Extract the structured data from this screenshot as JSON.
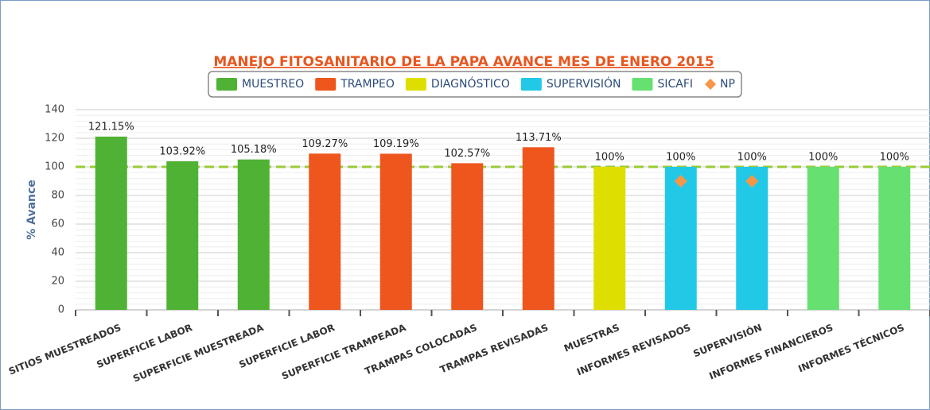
{
  "chart_data": {
    "type": "bar",
    "title": "MANEJO FITOSANITARIO DE LA PAPA AVANCE MES DE ENERO 2015",
    "ylabel": "% Avance",
    "categories": [
      "SITIOS MUESTREADOS",
      "SUPERFICIE LABOR",
      "SUPERFICIE MUESTREADA",
      "SUPERFICIE LABOR",
      "SUPERFICIE TRAMPEADA",
      "TRAMPAS COLOCADAS",
      "TRAMPAS REVISADAS",
      "MUESTRAS",
      "INFORMES REVISADOS",
      "SUPERVISIÓN",
      "INFORMES FINANCIEROS",
      "INFORMES TÉCNICOS"
    ],
    "series": [
      {
        "name": "MUESTREO",
        "color": "#4fb235",
        "values": [
          121.15,
          103.92,
          105.18,
          null,
          null,
          null,
          null,
          null,
          null,
          null,
          null,
          null
        ],
        "value_labels": [
          "121.15%",
          "103.92%",
          "105.18%",
          null,
          null,
          null,
          null,
          null,
          null,
          null,
          null,
          null
        ]
      },
      {
        "name": "TRAMPEO",
        "color": "#ee561e",
        "values": [
          null,
          null,
          null,
          109.27,
          109.19,
          102.57,
          113.71,
          null,
          null,
          null,
          null,
          null
        ],
        "value_labels": [
          null,
          null,
          null,
          "109.27%",
          "109.19%",
          "102.57%",
          "113.71%",
          null,
          null,
          null,
          null,
          null
        ]
      },
      {
        "name": "DIAGNÓSTICO",
        "color": "#dede00",
        "values": [
          null,
          null,
          null,
          null,
          null,
          null,
          null,
          100,
          null,
          null,
          null,
          null
        ],
        "value_labels": [
          null,
          null,
          null,
          null,
          null,
          null,
          null,
          "100%",
          null,
          null,
          null,
          null
        ]
      },
      {
        "name": "SUPERVISIÓN",
        "color": "#22c9e6",
        "values": [
          null,
          null,
          null,
          null,
          null,
          null,
          null,
          null,
          100,
          100,
          null,
          null
        ],
        "value_labels": [
          null,
          null,
          null,
          null,
          null,
          null,
          null,
          null,
          "100%",
          "100%",
          null,
          null
        ]
      },
      {
        "name": "SICAFI",
        "color": "#66e070",
        "values": [
          null,
          null,
          null,
          null,
          null,
          null,
          null,
          null,
          null,
          null,
          100,
          100
        ],
        "value_labels": [
          null,
          null,
          null,
          null,
          null,
          null,
          null,
          null,
          null,
          null,
          "100%",
          "100%"
        ]
      },
      {
        "name": "NP",
        "color": "#f79646",
        "type": "marker",
        "values": [
          null,
          null,
          null,
          null,
          null,
          null,
          null,
          null,
          90,
          90,
          null,
          null
        ]
      }
    ],
    "ylim": [
      0,
      140
    ],
    "yticks": [
      0,
      20,
      40,
      60,
      80,
      100,
      120,
      140
    ],
    "grid": true,
    "reference_line": {
      "value": 100,
      "color": "#99cc33"
    }
  }
}
